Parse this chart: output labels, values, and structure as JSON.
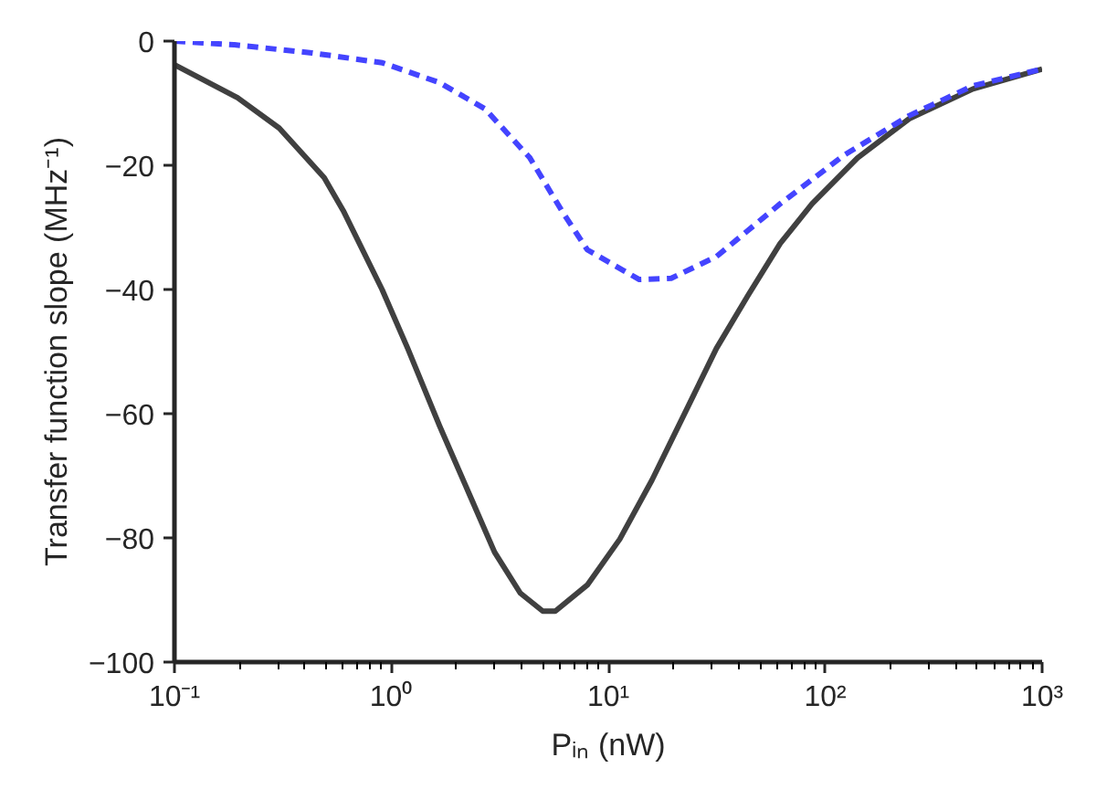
{
  "chart_data": {
    "type": "line",
    "xlabel": "Pᵢₙ (nW)",
    "ylabel": "Transfer function slope (MHz⁻¹)",
    "log": "x",
    "grid": false,
    "marker": "none",
    "xlim": [
      0.1,
      1000
    ],
    "xticks": [
      {
        "value": 0.1,
        "label": "10⁻¹"
      },
      {
        "value": 1,
        "label": "10⁰"
      },
      {
        "value": 10,
        "label": "10¹"
      },
      {
        "value": 100,
        "label": "10²"
      },
      {
        "value": 1000,
        "label": "10³"
      }
    ],
    "ylim": [
      -100,
      0
    ],
    "yticks": [
      -100,
      -80,
      -60,
      -40,
      -20,
      0
    ],
    "series": [
      {
        "color": "#404040",
        "line_style": "solid",
        "x": [
          0.1,
          0.195,
          0.304,
          0.49,
          0.6,
          0.906,
          1.19,
          1.67,
          2.35,
          2.99,
          3.93,
          4.99,
          5.7,
          8.0,
          11.3,
          15.9,
          22.4,
          31.5,
          44,
          62,
          87,
          141,
          244,
          480,
          1000
        ],
        "values": [
          -3.8,
          -9.1,
          -14,
          -22,
          -27.3,
          -40,
          -49.5,
          -62,
          -73.9,
          -82.3,
          -88.9,
          -91.8,
          -91.8,
          -87.6,
          -80.2,
          -70.7,
          -60.1,
          -49.5,
          -41,
          -32.6,
          -26.2,
          -18.8,
          -12.5,
          -7.7,
          -4.5
        ]
      },
      {
        "color": "#4444ff",
        "line_style": "dashed",
        "x": [
          0.1,
          0.189,
          0.43,
          0.91,
          1.67,
          2.7,
          4.35,
          6.1,
          8.0,
          13.9,
          19.5,
          31.5,
          62,
          123,
          244,
          480,
          1000
        ],
        "values": [
          0,
          -0.6,
          -1.9,
          -3.5,
          -6.7,
          -10.9,
          -18.8,
          -27.3,
          -33.6,
          -38.4,
          -38.2,
          -34.7,
          -26.2,
          -18.3,
          -12,
          -7.2,
          -4.5
        ]
      }
    ]
  }
}
